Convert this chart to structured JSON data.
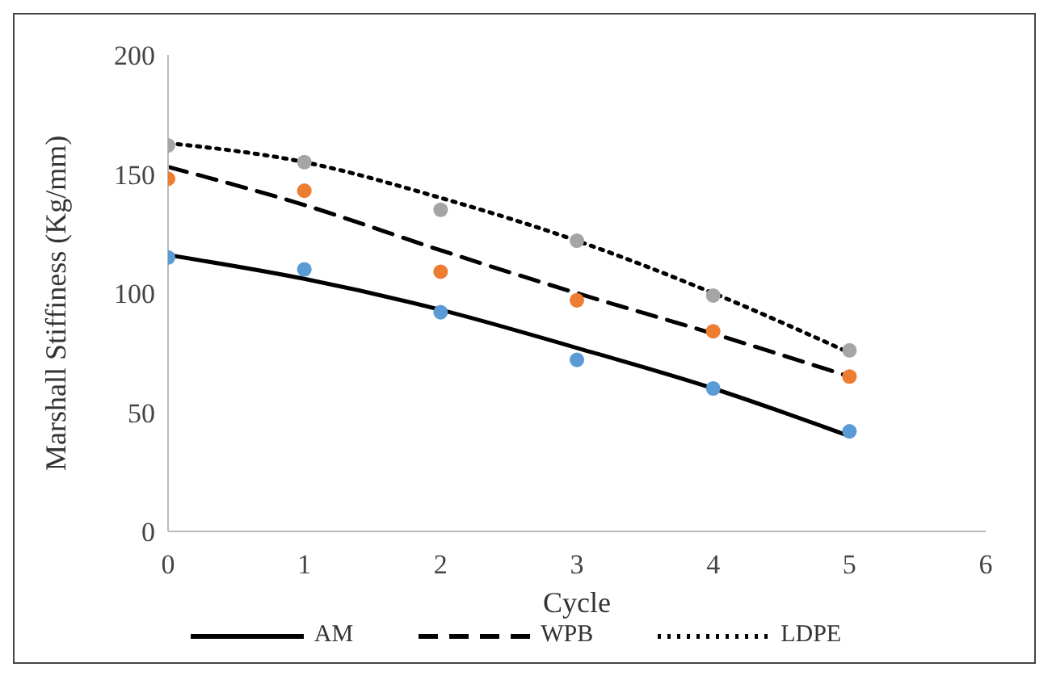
{
  "chart_data": {
    "type": "scatter",
    "xlabel": "Cycle",
    "ylabel": "Marshall Stiffiness (Kg/mm)",
    "x": [
      0,
      1,
      2,
      3,
      4,
      5
    ],
    "xlim": [
      0,
      6
    ],
    "xticks": [
      0,
      1,
      2,
      3,
      4,
      5,
      6
    ],
    "ylim": [
      0,
      200
    ],
    "yticks": [
      0,
      50,
      100,
      150,
      200
    ],
    "legend": "bottom",
    "series": [
      {
        "marker": "circle",
        "color": "#5b9bd5",
        "values": [
          115,
          110,
          92,
          72,
          60,
          42
        ]
      },
      {
        "marker": "circle",
        "color": "#ed7d31",
        "values": [
          148,
          143,
          109,
          97,
          84,
          65
        ]
      },
      {
        "marker": "circle",
        "color": "#a5a5a5",
        "values": [
          162,
          155,
          135,
          122,
          99,
          76
        ]
      },
      {
        "type": "line",
        "name": "AM",
        "marker": "none",
        "line_style": "solid",
        "color": "#000000",
        "values": [
          116,
          106,
          93,
          77,
          60,
          40
        ]
      },
      {
        "type": "line",
        "name": "WPB",
        "marker": "none",
        "line_style": "dashed",
        "color": "#000000",
        "values": [
          153,
          137,
          118,
          100,
          83,
          65
        ]
      },
      {
        "type": "line",
        "name": "LDPE",
        "marker": "none",
        "line_style": "dotted",
        "color": "#000000",
        "values": [
          163,
          155,
          140,
          122,
          100,
          75
        ]
      }
    ]
  }
}
